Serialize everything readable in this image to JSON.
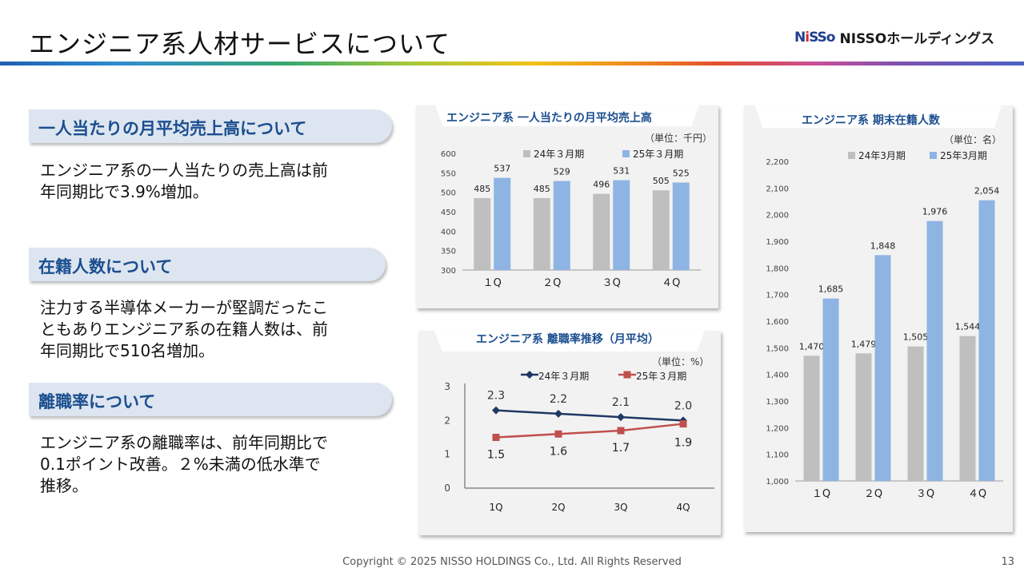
{
  "header": {
    "title": "エンジニア系人材サービスについて",
    "logo_mark": "NiSSo",
    "logo_text": "NISSOホールディングス"
  },
  "sections": [
    {
      "heading": "一人当たりの月平均売上高について",
      "body": [
        "エンジニア系の一人当たりの売上高は前",
        "年同期比で3.9%増加。"
      ]
    },
    {
      "heading": "在籍人数について",
      "body": [
        "注力する半導体メーカーが堅調だったこ",
        "ともありエンジニア系の在籍人数は、前",
        "年同期比で510名増加。"
      ]
    },
    {
      "heading": "離職率について",
      "body": [
        "エンジニア系の離職率は、前年同期比で",
        "0.1ポイント改善。２%未満の低水準で",
        "推移。"
      ]
    }
  ],
  "colors": {
    "prev": "#bfbfbf",
    "curr": "#8eb4e3",
    "line_prev": "#1f3864",
    "line_curr": "#c0504d",
    "heading": "#1b4e8f"
  },
  "chart_data": [
    {
      "id": "sales",
      "type": "bar",
      "title": "エンジニア系 一人当たりの月平均売上高",
      "unit": "（単位：千円）",
      "categories": [
        "1Q",
        "2Q",
        "3Q",
        "4Q"
      ],
      "category_labels": [
        "１Q",
        "２Q",
        "３Q",
        "４Q"
      ],
      "series": [
        {
          "name": "24年３月期",
          "values": [
            485,
            485,
            496,
            505
          ]
        },
        {
          "name": "25年３月期",
          "values": [
            537,
            529,
            531,
            525
          ]
        }
      ],
      "ylim": [
        300,
        600
      ],
      "yticks": [
        300,
        350,
        400,
        450,
        500,
        550,
        600
      ],
      "legend": "top"
    },
    {
      "id": "turnover",
      "type": "line",
      "title": "エンジニア系 離職率推移（月平均）",
      "unit": "（単位：%）",
      "categories": [
        "1Q",
        "2Q",
        "3Q",
        "4Q"
      ],
      "category_labels": [
        "1Q",
        "2Q",
        "3Q",
        "4Q"
      ],
      "series": [
        {
          "name": "24年３月期",
          "values": [
            2.3,
            2.2,
            2.1,
            2.0
          ],
          "labels": [
            "2.3",
            "2.2",
            "2.1",
            "2.0"
          ]
        },
        {
          "name": "25年３月期",
          "values": [
            1.5,
            1.6,
            1.7,
            1.9
          ],
          "labels": [
            "1.5",
            "1.6",
            "1.7",
            "1.9"
          ]
        }
      ],
      "ylim": [
        0,
        3
      ],
      "yticks": [
        0,
        1,
        2,
        3
      ],
      "legend": "top"
    },
    {
      "id": "headcount",
      "type": "bar",
      "title": "エンジニア系 期末在籍人数",
      "unit": "（単位：名）",
      "categories": [
        "1Q",
        "2Q",
        "3Q",
        "4Q"
      ],
      "category_labels": [
        "１Q",
        "２Q",
        "３Q",
        "４Q"
      ],
      "series": [
        {
          "name": "24年3月期",
          "values": [
            1470,
            1479,
            1505,
            1544
          ]
        },
        {
          "name": "25年3月期",
          "values": [
            1685,
            1848,
            1976,
            2054
          ]
        }
      ],
      "ylim": [
        1000,
        2200
      ],
      "yticks": [
        1000,
        1100,
        1200,
        1300,
        1400,
        1500,
        1600,
        1700,
        1800,
        1900,
        2000,
        2100,
        2200
      ],
      "legend": "top"
    }
  ],
  "footer": {
    "copyright": "Copyright © 2025 NISSO HOLDINGS Co., Ltd. All Rights Reserved",
    "page": "13"
  }
}
